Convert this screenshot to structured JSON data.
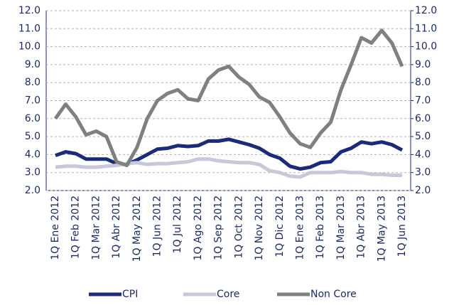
{
  "chart_data": {
    "type": "line",
    "categories": [
      "1Q Ene 2012",
      null,
      "1Q Feb 2012",
      null,
      "1Q Mar 2012",
      null,
      "1Q Abr 2012",
      null,
      "1Q May 2012",
      null,
      "1Q Jun 2012",
      null,
      "1Q Jul 2012",
      null,
      "1Q Ago 2012",
      null,
      "1Q Sep 2012",
      null,
      "1Q Oct 2012",
      null,
      "1Q Nov 2012",
      null,
      "1Q Dic 2012",
      null,
      "1Q Ene 2013",
      null,
      "1Q Feb 2013",
      null,
      "1Q Mar 2013",
      null,
      "1Q Abr 2013",
      null,
      "1Q May 2013",
      null,
      "1Q Jun 2013"
    ],
    "series": [
      {
        "name": "CPI",
        "color": "#1b2a7a",
        "values": [
          3.95,
          4.15,
          4.05,
          3.75,
          3.75,
          3.75,
          3.5,
          3.45,
          3.7,
          4.0,
          4.3,
          4.35,
          4.5,
          4.45,
          4.5,
          4.75,
          4.75,
          4.85,
          4.7,
          4.55,
          4.35,
          4.0,
          3.8,
          3.35,
          3.2,
          3.3,
          3.55,
          3.6,
          4.15,
          4.35,
          4.7,
          4.6,
          4.7,
          4.55,
          4.25
        ]
      },
      {
        "name": "Core",
        "color": "#c8c8dc",
        "values": [
          3.3,
          3.35,
          3.35,
          3.3,
          3.3,
          3.35,
          3.4,
          3.5,
          3.55,
          3.45,
          3.5,
          3.5,
          3.55,
          3.6,
          3.75,
          3.75,
          3.65,
          3.6,
          3.55,
          3.55,
          3.45,
          3.1,
          3.0,
          2.8,
          2.75,
          3.0,
          3.0,
          3.0,
          3.05,
          3.0,
          3.0,
          2.9,
          2.9,
          2.85,
          2.85
        ]
      },
      {
        "name": "Non Core",
        "color": "#808080",
        "values": [
          6.0,
          6.8,
          6.1,
          5.1,
          5.3,
          5.0,
          3.6,
          3.4,
          4.4,
          6.0,
          7.0,
          7.4,
          7.6,
          7.1,
          7.0,
          8.2,
          8.7,
          8.9,
          8.3,
          7.9,
          7.2,
          6.9,
          6.1,
          5.2,
          4.6,
          4.4,
          5.2,
          5.8,
          7.6,
          9.0,
          10.5,
          10.2,
          10.9,
          10.2,
          8.9
        ]
      }
    ],
    "ylim": [
      2,
      12
    ],
    "yticks": [
      {
        "value": 2,
        "label": "2.0"
      },
      {
        "value": 3,
        "label": "3.0"
      },
      {
        "value": 4,
        "label": "4.0"
      },
      {
        "value": 5,
        "label": "5.0"
      },
      {
        "value": 6,
        "label": "6.0"
      },
      {
        "value": 7,
        "label": "7.0"
      },
      {
        "value": 8,
        "label": "8.0"
      },
      {
        "value": 9,
        "label": "9.0"
      },
      {
        "value": 10,
        "label": "10.0"
      },
      {
        "value": 11,
        "label": "11.0"
      },
      {
        "value": 12,
        "label": "12.0"
      }
    ],
    "y2lim": [
      2,
      12
    ],
    "y2ticks": [
      {
        "value": 2,
        "label": "2.0"
      },
      {
        "value": 3,
        "label": "3.0"
      },
      {
        "value": 4,
        "label": "4.0"
      },
      {
        "value": 5,
        "label": "5.0"
      },
      {
        "value": 6,
        "label": "6.0"
      },
      {
        "value": 7,
        "label": "7.0"
      },
      {
        "value": 8,
        "label": "8.0"
      },
      {
        "value": 9,
        "label": "9.0"
      },
      {
        "value": 10,
        "label": "10.0"
      },
      {
        "value": 11,
        "label": "11.0"
      },
      {
        "value": 12,
        "label": "12.0"
      }
    ],
    "grid": true,
    "legend": "bottom"
  }
}
